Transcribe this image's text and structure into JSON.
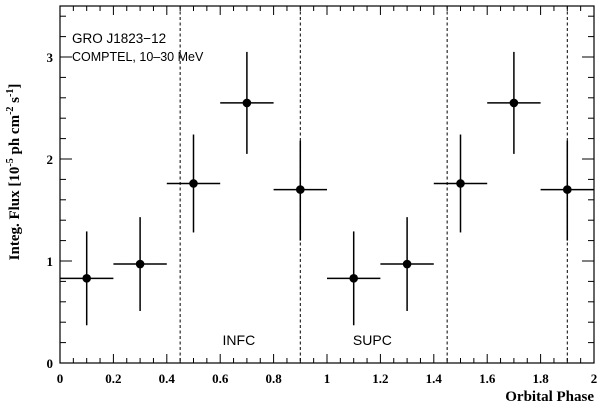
{
  "chart_data": {
    "type": "scatter",
    "annotation_lines": [
      "GRO J1823−12",
      "COMPTEL, 10–30 MeV"
    ],
    "xlabel": "Orbital Phase",
    "ylabel": {
      "prefix": "Integ. Flux [10",
      "exp1": "-5",
      "middle1": " ph cm",
      "exp2": "-2",
      "middle2": " s",
      "exp3": "-1",
      "suffix": "]"
    },
    "xlim": [
      0,
      2
    ],
    "ylim": [
      0,
      3.5
    ],
    "xticks": [
      0,
      0.2,
      0.4,
      0.6,
      0.8,
      1,
      1.2,
      1.4,
      1.6,
      1.8,
      2
    ],
    "xtick_labels": [
      "0",
      "0.2",
      "0.4",
      "0.6",
      "0.8",
      "1",
      "1.2",
      "1.4",
      "1.6",
      "1.8",
      "2"
    ],
    "yticks": [
      0,
      1,
      2,
      3
    ],
    "ytick_labels": [
      "0",
      "1",
      "2",
      "3"
    ],
    "points": [
      {
        "x": 0.1,
        "y": 0.83,
        "xerr": 0.1,
        "yerr_low": 0.46,
        "yerr_high": 0.46
      },
      {
        "x": 0.3,
        "y": 0.97,
        "xerr": 0.1,
        "yerr_low": 0.46,
        "yerr_high": 0.46
      },
      {
        "x": 0.5,
        "y": 1.76,
        "xerr": 0.1,
        "yerr_low": 0.48,
        "yerr_high": 0.48
      },
      {
        "x": 0.7,
        "y": 2.55,
        "xerr": 0.1,
        "yerr_low": 0.5,
        "yerr_high": 0.5
      },
      {
        "x": 0.9,
        "y": 1.7,
        "xerr": 0.1,
        "yerr_low": 0.5,
        "yerr_high": 0.48
      },
      {
        "x": 1.1,
        "y": 0.83,
        "xerr": 0.1,
        "yerr_low": 0.46,
        "yerr_high": 0.46
      },
      {
        "x": 1.3,
        "y": 0.97,
        "xerr": 0.1,
        "yerr_low": 0.46,
        "yerr_high": 0.46
      },
      {
        "x": 1.5,
        "y": 1.76,
        "xerr": 0.1,
        "yerr_low": 0.48,
        "yerr_high": 0.48
      },
      {
        "x": 1.7,
        "y": 2.55,
        "xerr": 0.1,
        "yerr_low": 0.5,
        "yerr_high": 0.5
      },
      {
        "x": 1.9,
        "y": 1.7,
        "xerr": 0.1,
        "yerr_low": 0.5,
        "yerr_high": 0.48
      }
    ],
    "vlines": [
      0.45,
      0.9,
      1.45,
      1.9
    ],
    "region_labels": [
      {
        "text": "INFC",
        "x": 0.67
      },
      {
        "text": "SUPC",
        "x": 1.17
      }
    ],
    "grid": false,
    "legend": "none"
  }
}
